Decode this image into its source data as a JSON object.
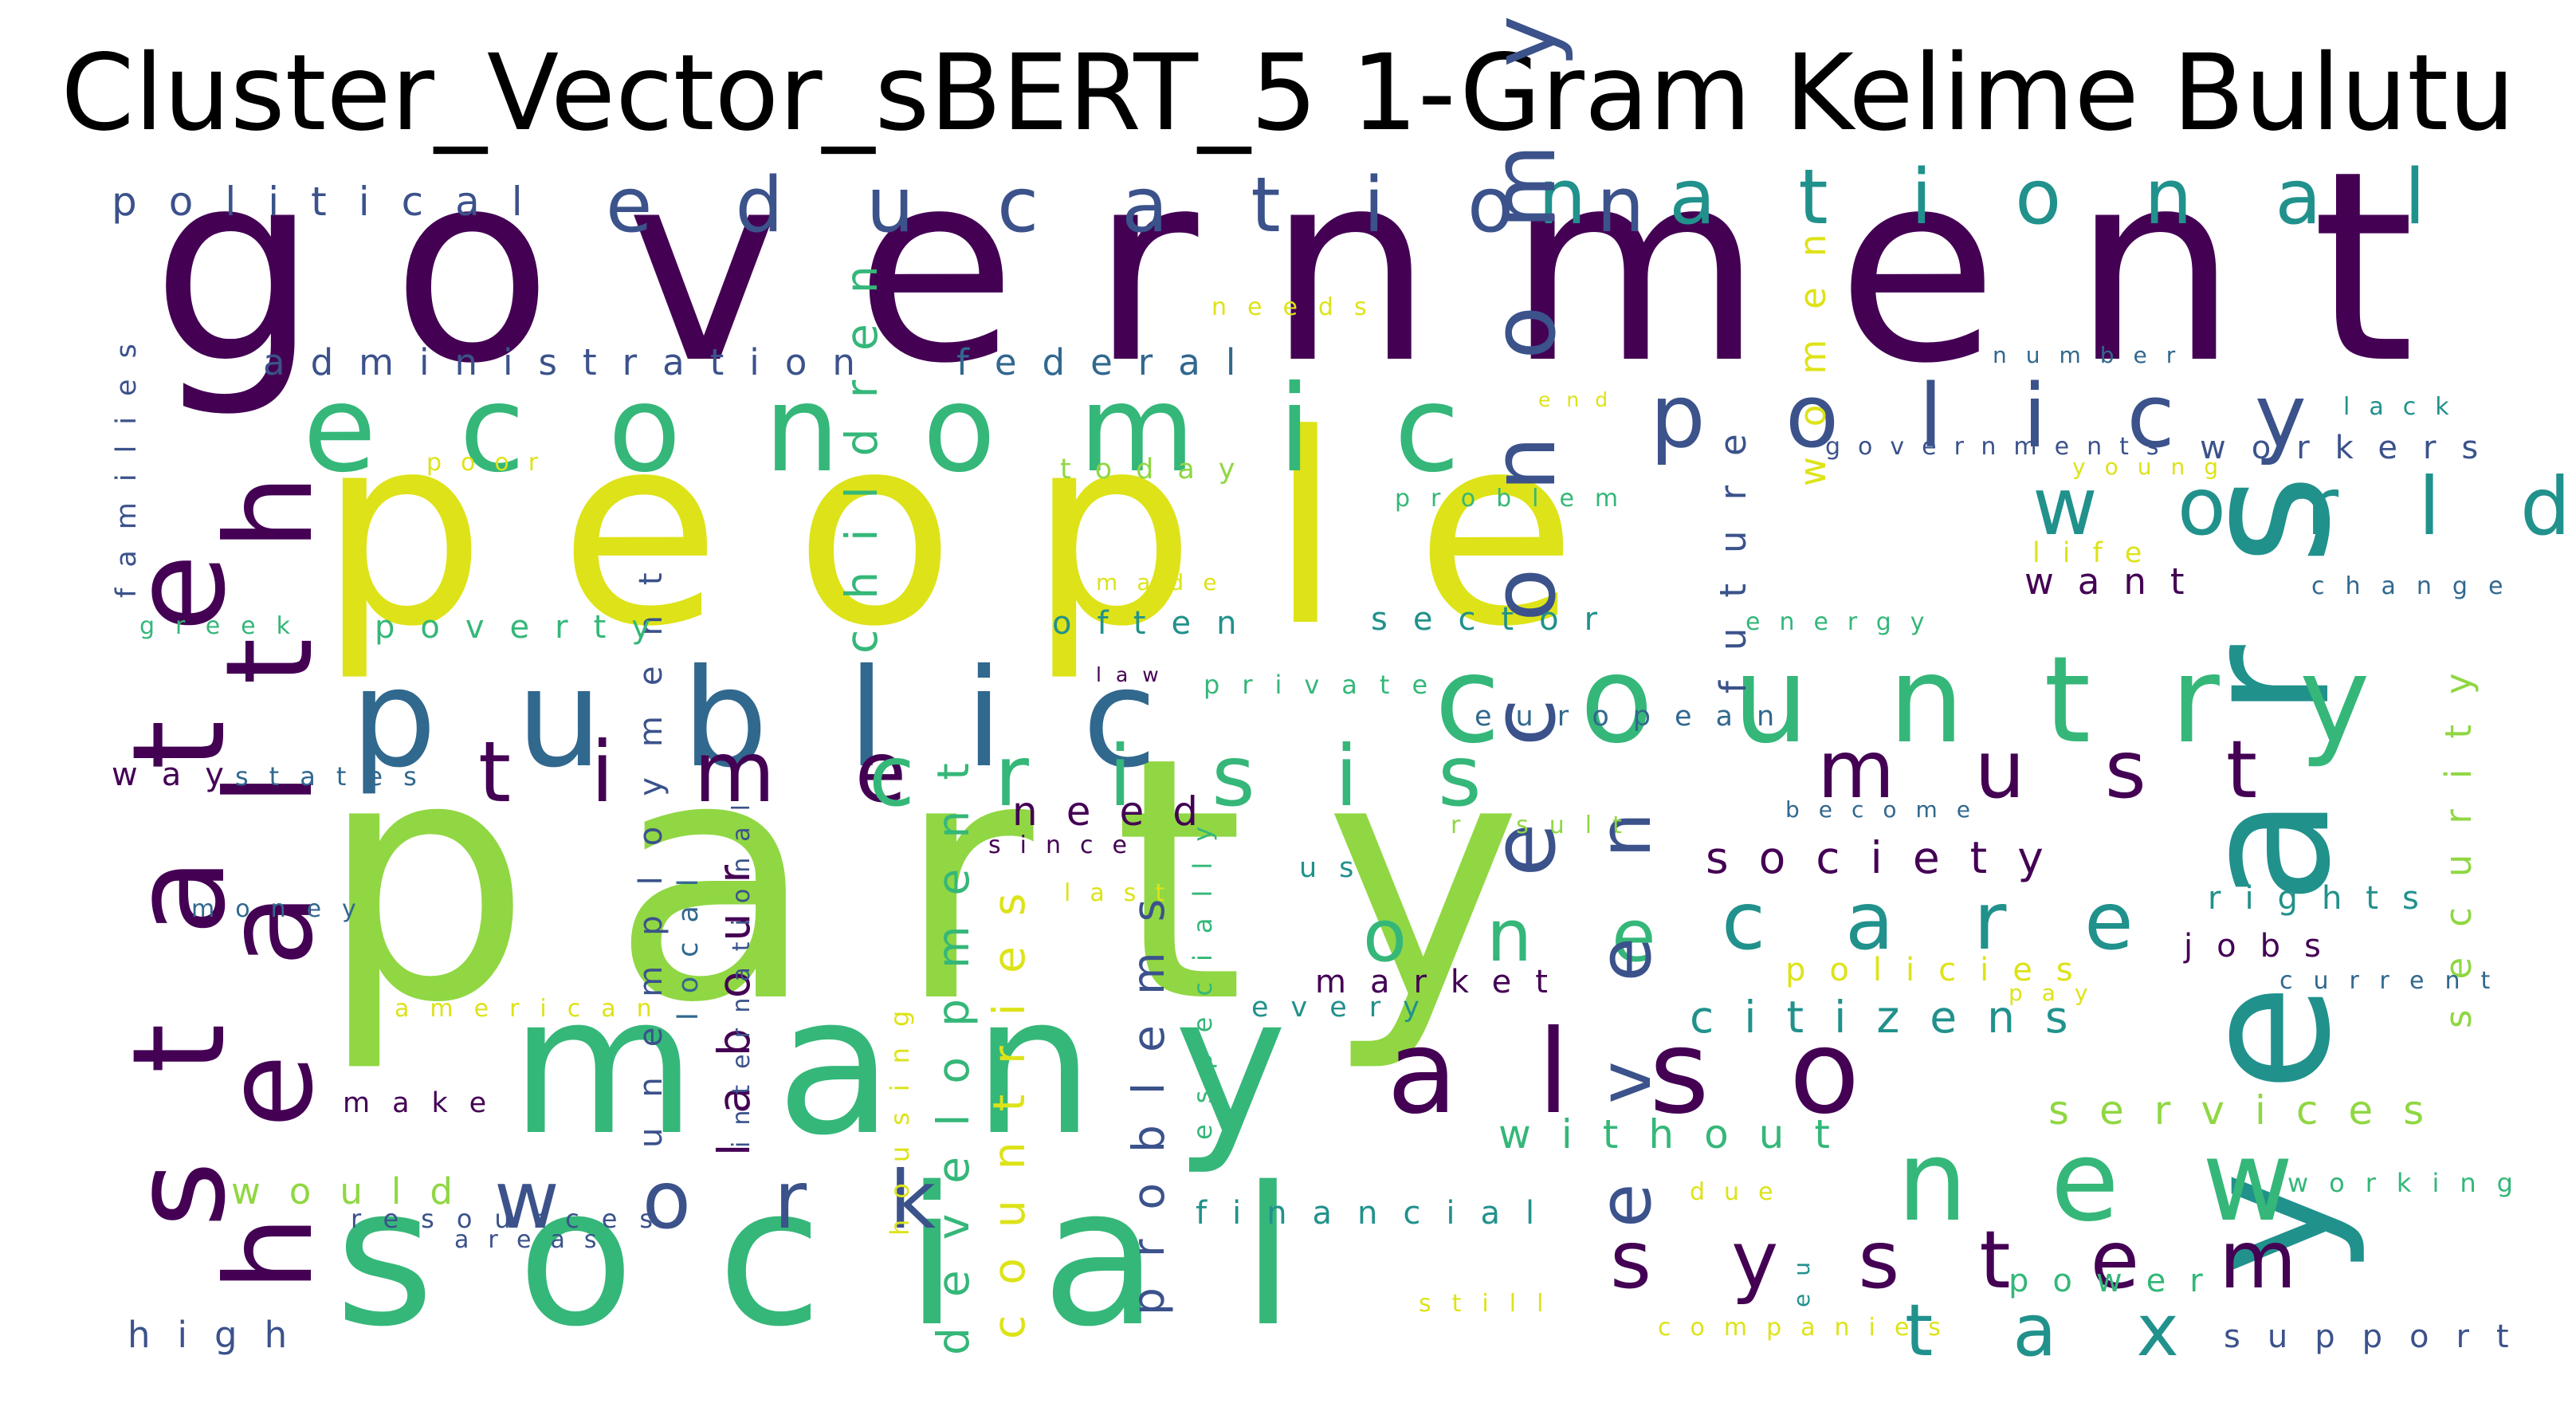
{
  "title": "Cluster_Vector_sBERT_5 1-Gram Kelime Bulutu",
  "colors": {
    "dark_purple": "#440154",
    "indigo": "#3b528b",
    "blue": "#31688e",
    "teal": "#21918c",
    "green": "#35b779",
    "lime": "#90d743",
    "yellow": "#dde318"
  },
  "words": [
    {
      "text": "government",
      "color": "dark_purple"
    },
    {
      "text": "people",
      "color": "yellow"
    },
    {
      "text": "party",
      "color": "lime"
    },
    {
      "text": "social",
      "color": "green"
    },
    {
      "text": "many",
      "color": "green"
    },
    {
      "text": "public",
      "color": "blue"
    },
    {
      "text": "economic",
      "color": "green"
    },
    {
      "text": "years",
      "color": "teal"
    },
    {
      "text": "country",
      "color": "green"
    },
    {
      "text": "state",
      "color": "dark_purple"
    },
    {
      "text": "health",
      "color": "dark_purple"
    },
    {
      "text": "education",
      "color": "indigo"
    },
    {
      "text": "national",
      "color": "teal"
    },
    {
      "text": "policy",
      "color": "indigo"
    },
    {
      "text": "economy",
      "color": "indigo"
    },
    {
      "text": "time",
      "color": "dark_purple"
    },
    {
      "text": "crisis",
      "color": "green"
    },
    {
      "text": "must",
      "color": "dark_purple"
    },
    {
      "text": "also",
      "color": "dark_purple"
    },
    {
      "text": "world",
      "color": "teal"
    },
    {
      "text": "new",
      "color": "green"
    },
    {
      "text": "system",
      "color": "dark_purple"
    },
    {
      "text": "work",
      "color": "indigo"
    },
    {
      "text": "care",
      "color": "teal"
    },
    {
      "text": "one",
      "color": "green"
    },
    {
      "text": "even",
      "color": "indigo"
    },
    {
      "text": "tax",
      "color": "teal"
    },
    {
      "text": "society",
      "color": "dark_purple"
    },
    {
      "text": "citizens",
      "color": "teal"
    },
    {
      "text": "children",
      "color": "green"
    },
    {
      "text": "development",
      "color": "green"
    },
    {
      "text": "countries",
      "color": "yellow"
    },
    {
      "text": "problems",
      "color": "indigo"
    },
    {
      "text": "labour",
      "color": "dark_purple"
    },
    {
      "text": "unemployment",
      "color": "indigo"
    },
    {
      "text": "security",
      "color": "lime"
    },
    {
      "text": "services",
      "color": "lime"
    },
    {
      "text": "without",
      "color": "green"
    },
    {
      "text": "women",
      "color": "yellow"
    },
    {
      "text": "future",
      "color": "indigo"
    },
    {
      "text": "political",
      "color": "indigo"
    },
    {
      "text": "administration",
      "color": "indigo"
    },
    {
      "text": "federal",
      "color": "blue"
    },
    {
      "text": "families",
      "color": "indigo"
    },
    {
      "text": "needs",
      "color": "yellow"
    },
    {
      "text": "today",
      "color": "lime"
    },
    {
      "text": "poor",
      "color": "yellow"
    },
    {
      "text": "problem",
      "color": "green"
    },
    {
      "text": "workers",
      "color": "indigo"
    },
    {
      "text": "governments",
      "color": "indigo"
    },
    {
      "text": "young",
      "color": "yellow"
    },
    {
      "text": "number",
      "color": "blue"
    },
    {
      "text": "lack",
      "color": "teal"
    },
    {
      "text": "end",
      "color": "yellow"
    },
    {
      "text": "life",
      "color": "yellow"
    },
    {
      "text": "want",
      "color": "dark_purple"
    },
    {
      "text": "change",
      "color": "blue"
    },
    {
      "text": "made",
      "color": "yellow"
    },
    {
      "text": "greek",
      "color": "green"
    },
    {
      "text": "poverty",
      "color": "green"
    },
    {
      "text": "often",
      "color": "teal"
    },
    {
      "text": "sector",
      "color": "teal"
    },
    {
      "text": "energy",
      "color": "green"
    },
    {
      "text": "law",
      "color": "dark_purple"
    },
    {
      "text": "private",
      "color": "green"
    },
    {
      "text": "european",
      "color": "blue"
    },
    {
      "text": "way",
      "color": "dark_purple"
    },
    {
      "text": "states",
      "color": "blue"
    },
    {
      "text": "need",
      "color": "dark_purple"
    },
    {
      "text": "since",
      "color": "dark_purple"
    },
    {
      "text": "result",
      "color": "lime"
    },
    {
      "text": "become",
      "color": "blue"
    },
    {
      "text": "us",
      "color": "teal"
    },
    {
      "text": "last",
      "color": "yellow"
    },
    {
      "text": "especially",
      "color": "green"
    },
    {
      "text": "local",
      "color": "blue"
    },
    {
      "text": "international",
      "color": "indigo"
    },
    {
      "text": "money",
      "color": "blue"
    },
    {
      "text": "rights",
      "color": "teal"
    },
    {
      "text": "jobs",
      "color": "dark_purple"
    },
    {
      "text": "current",
      "color": "blue"
    },
    {
      "text": "policies",
      "color": "yellow"
    },
    {
      "text": "pay",
      "color": "yellow"
    },
    {
      "text": "market",
      "color": "dark_purple"
    },
    {
      "text": "every",
      "color": "teal"
    },
    {
      "text": "american",
      "color": "yellow"
    },
    {
      "text": "make",
      "color": "dark_purple"
    },
    {
      "text": "housing",
      "color": "yellow"
    },
    {
      "text": "would",
      "color": "lime"
    },
    {
      "text": "resources",
      "color": "indigo"
    },
    {
      "text": "areas",
      "color": "indigo"
    },
    {
      "text": "financial",
      "color": "teal"
    },
    {
      "text": "due",
      "color": "yellow"
    },
    {
      "text": "working",
      "color": "green"
    },
    {
      "text": "power",
      "color": "green"
    },
    {
      "text": "eu",
      "color": "teal"
    },
    {
      "text": "high",
      "color": "indigo"
    },
    {
      "text": "still",
      "color": "yellow"
    },
    {
      "text": "companies",
      "color": "yellow"
    },
    {
      "text": "support",
      "color": "indigo"
    }
  ]
}
